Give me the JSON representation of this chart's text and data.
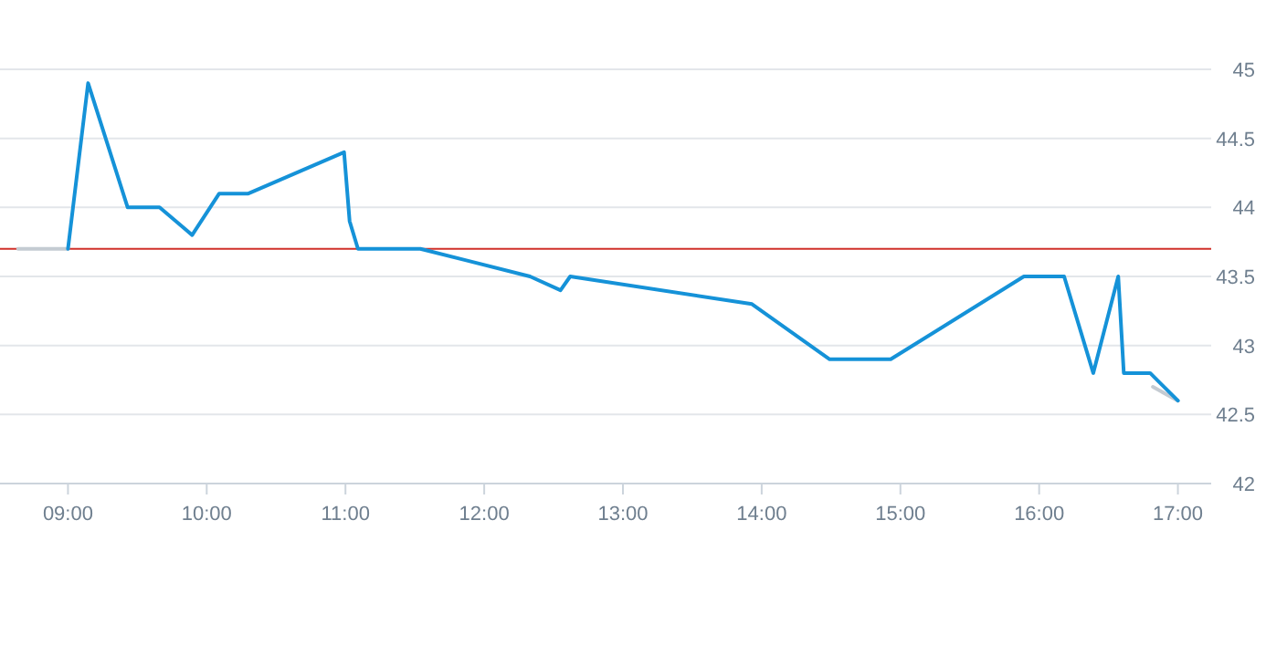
{
  "chart_data": {
    "type": "line",
    "xlim": [
      8.51,
      17.24
    ],
    "xticks": [
      {
        "value": 9,
        "label": "09:00"
      },
      {
        "value": 10,
        "label": "10:00"
      },
      {
        "value": 11,
        "label": "11:00"
      },
      {
        "value": 12,
        "label": "12:00"
      },
      {
        "value": 13,
        "label": "13:00"
      },
      {
        "value": 14,
        "label": "14:00"
      },
      {
        "value": 15,
        "label": "15:00"
      },
      {
        "value": 16,
        "label": "16:00"
      },
      {
        "value": 17,
        "label": "17:00"
      }
    ],
    "ylim": [
      42,
      45
    ],
    "yticks": [
      42,
      42.5,
      43,
      43.5,
      44,
      44.5,
      45
    ],
    "grid": "y",
    "marker": "none",
    "line_style": "solid",
    "ref_lines": [
      {
        "axis": "y",
        "value": 43.7,
        "color": "#d0302a"
      }
    ],
    "series": [
      {
        "color": "#c4cbd2",
        "x": [
          8.64,
          9.0
        ],
        "values": [
          43.7,
          43.7
        ]
      },
      {
        "color": "#c4cbd2",
        "x": [
          16.82,
          17.0
        ],
        "values": [
          42.7,
          42.6
        ]
      },
      {
        "color": "#1592d8",
        "x": [
          9.0,
          9.145,
          9.43,
          9.66,
          9.895,
          10.09,
          10.3,
          10.99,
          11.03,
          11.09,
          11.54,
          12.33,
          12.55,
          12.62,
          13.93,
          14.49,
          14.93,
          15.89,
          16.18,
          16.39,
          16.57,
          16.61,
          16.8,
          17.0
        ],
        "values": [
          43.7,
          44.9,
          44.0,
          44.0,
          43.8,
          44.1,
          44.1,
          44.4,
          43.9,
          43.7,
          43.7,
          43.5,
          43.4,
          43.5,
          43.3,
          42.9,
          42.9,
          43.5,
          43.5,
          42.8,
          43.5,
          42.8,
          42.8,
          42.6
        ]
      }
    ]
  }
}
